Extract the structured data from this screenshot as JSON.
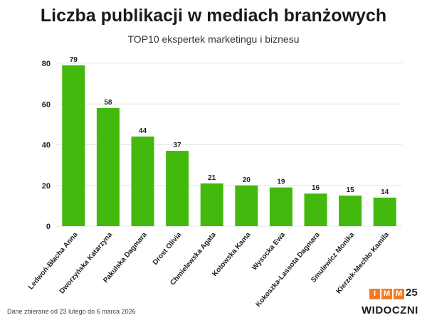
{
  "header": {
    "title": "Liczba publikacji w mediach branżowych",
    "subtitle": "TOP10 ekspertek marketingu i biznesu"
  },
  "footer": {
    "note": "Dane zbierane od 23 lutego do 6 marca 2026"
  },
  "logos": {
    "imm_letters": [
      "I",
      "M",
      "M"
    ],
    "imm_number": "25",
    "widoczni_text": "WIDOCZNI"
  },
  "colors": {
    "bar": "#43b90e",
    "grid": "#e6e6e6",
    "imm_orange": "#f47b20",
    "widoczni_green": "#43b90e"
  },
  "chart_data": {
    "type": "bar",
    "title": "Liczba publikacji w mediach branżowych",
    "subtitle": "TOP10 ekspertek marketingu i biznesu",
    "categories": [
      "Ledwoń-Błacha Anna",
      "Dworzyńska Katarzyna",
      "Pakulska Dagmara",
      "Drost Olivia",
      "Chmielewska Agata",
      "Kotowska Kama",
      "Wysocka Ewa",
      "Kokoszka-Lassota Dagmara",
      "Smulewicz Monika",
      "Kierzek-Mechło Kamila"
    ],
    "values": [
      79,
      58,
      44,
      37,
      21,
      20,
      19,
      16,
      15,
      14
    ],
    "yticks": [
      0,
      20,
      40,
      60,
      80
    ],
    "ylim": [
      0,
      80
    ],
    "xlabel": "",
    "ylabel": "",
    "grid": true,
    "data_labels": true
  }
}
